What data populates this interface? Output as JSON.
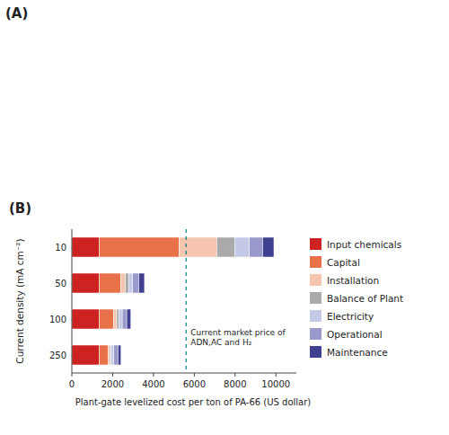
{
  "chart_data": {
    "type": "bar",
    "orientation": "horizontal",
    "stacked": true,
    "title": "(B)",
    "xlabel": "Plant-gate levelized cost per ton of PA-66 (US dollar)",
    "ylabel": "Current density (mA cm⁻²)",
    "categories": [
      "250",
      "100",
      "50",
      "10"
    ],
    "series": [
      {
        "name": "Input chemicals",
        "color": "#cc2222",
        "values": [
          1350,
          1350,
          1350,
          1350
        ]
      },
      {
        "name": "Capital",
        "color": "#e8714a",
        "values": [
          420,
          700,
          1050,
          3900
        ]
      },
      {
        "name": "Installation",
        "color": "#f5c5b0",
        "values": [
          90,
          150,
          220,
          1850
        ]
      },
      {
        "name": "Balance of Plant",
        "color": "#aaaaaa",
        "values": [
          70,
          100,
          160,
          900
        ]
      },
      {
        "name": "Electricity",
        "color": "#c5c9e8",
        "values": [
          130,
          170,
          200,
          700
        ]
      },
      {
        "name": "Operational",
        "color": "#9999cc",
        "values": [
          200,
          220,
          300,
          650
        ]
      },
      {
        "name": "Maintenance",
        "color": "#404090",
        "values": [
          150,
          200,
          280,
          550
        ]
      }
    ],
    "xlim": [
      0,
      11000
    ],
    "xticks": [
      0,
      2000,
      4000,
      6000,
      8000,
      10000
    ],
    "annotations": [
      {
        "text": "(A)"
      },
      {
        "text": "Current market price of\nADN,AC and H₂",
        "x": 5600,
        "color": "teal"
      }
    ],
    "grid": false,
    "legend": "right"
  }
}
